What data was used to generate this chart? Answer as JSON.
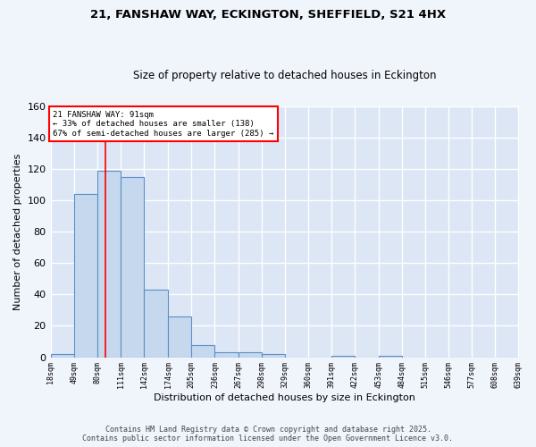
{
  "title1": "21, FANSHAW WAY, ECKINGTON, SHEFFIELD, S21 4HX",
  "title2": "Size of property relative to detached houses in Eckington",
  "xlabel": "Distribution of detached houses by size in Eckington",
  "ylabel": "Number of detached properties",
  "bar_heights": [
    2,
    104,
    119,
    115,
    43,
    26,
    8,
    3,
    3,
    2,
    0,
    0,
    1,
    0,
    1,
    0,
    0,
    0,
    0,
    0
  ],
  "bin_edges": [
    18,
    49,
    80,
    111,
    142,
    174,
    205,
    236,
    267,
    298,
    329,
    360,
    391,
    422,
    453,
    484,
    515,
    546,
    577,
    608,
    639
  ],
  "tick_labels": [
    "18sqm",
    "49sqm",
    "80sqm",
    "111sqm",
    "142sqm",
    "174sqm",
    "205sqm",
    "236sqm",
    "267sqm",
    "298sqm",
    "329sqm",
    "360sqm",
    "391sqm",
    "422sqm",
    "453sqm",
    "484sqm",
    "515sqm",
    "546sqm",
    "577sqm",
    "608sqm",
    "639sqm"
  ],
  "bar_color": "#c5d8ed",
  "bar_edge_color": "#5b8fc9",
  "bg_color": "#dce6f5",
  "grid_color": "#ffffff",
  "fig_bg_color": "#f0f4fb",
  "red_line_x": 91,
  "annotation_text": "21 FANSHAW WAY: 91sqm\n← 33% of detached houses are smaller (138)\n67% of semi-detached houses are larger (285) →",
  "ylim": [
    0,
    160
  ],
  "yticks": [
    0,
    20,
    40,
    60,
    80,
    100,
    120,
    140,
    160
  ],
  "footer1": "Contains HM Land Registry data © Crown copyright and database right 2025.",
  "footer2": "Contains public sector information licensed under the Open Government Licence v3.0."
}
